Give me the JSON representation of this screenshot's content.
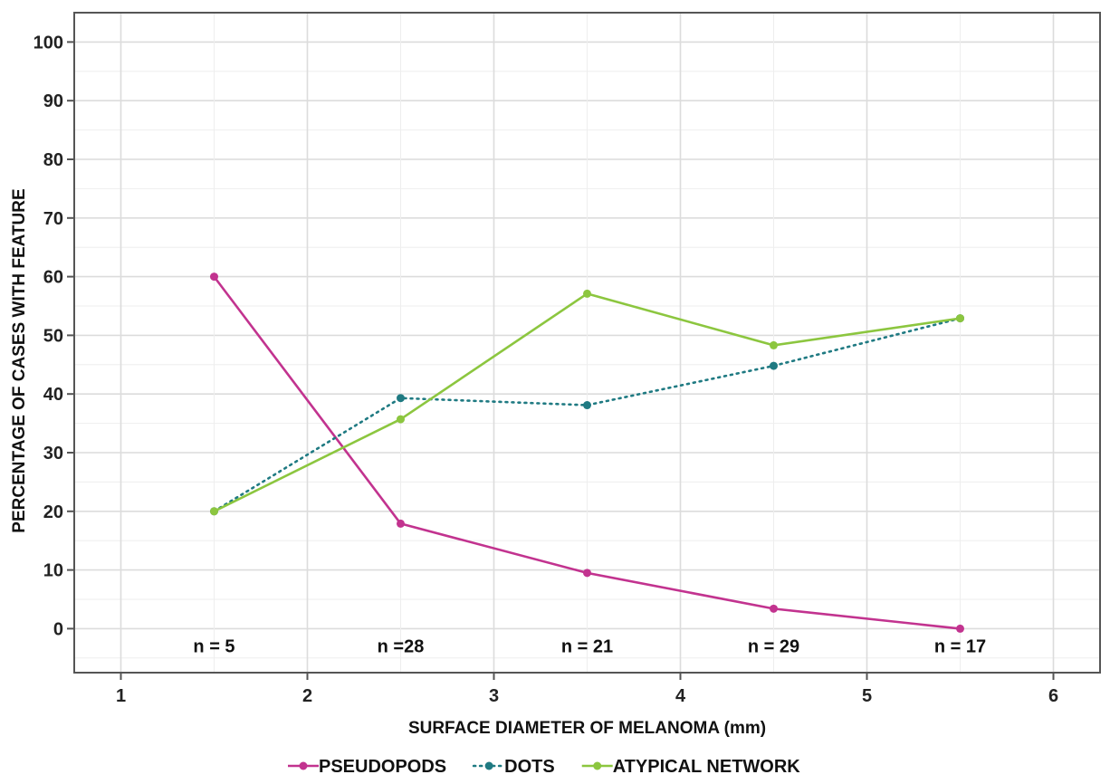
{
  "chart_data": {
    "type": "line",
    "xlabel": "SURFACE DIAMETER OF MELANOMA (mm)",
    "ylabel": "PERCENTAGE OF CASES WITH FEATURE",
    "xlim": [
      0.75,
      6.25
    ],
    "ylim": [
      -7.5,
      105
    ],
    "xticks": [
      1,
      2,
      3,
      4,
      5,
      6
    ],
    "yticks": [
      0,
      10,
      20,
      30,
      40,
      50,
      60,
      70,
      80,
      90,
      100
    ],
    "x": [
      1.5,
      2.5,
      3.5,
      4.5,
      5.5
    ],
    "grid": true,
    "legend_position": "bottom",
    "series": [
      {
        "name": "PSEUDOPODS",
        "values": [
          60,
          17.9,
          9.5,
          3.4,
          0
        ],
        "color": "#c2338f",
        "style": "solid"
      },
      {
        "name": "DOTS",
        "values": [
          20,
          39.3,
          38.1,
          44.8,
          52.9
        ],
        "color": "#1f7a82",
        "style": "dotted"
      },
      {
        "name": "ATYPICAL NETWORK",
        "values": [
          20,
          35.7,
          57.1,
          48.3,
          52.9
        ],
        "color": "#8cc63f",
        "style": "solid"
      }
    ],
    "annotations": [
      {
        "x": 1.5,
        "text": "n = 5"
      },
      {
        "x": 2.5,
        "text": "n =28"
      },
      {
        "x": 3.5,
        "text": "n = 21"
      },
      {
        "x": 4.5,
        "text": "n = 29"
      },
      {
        "x": 5.5,
        "text": "n = 17"
      }
    ]
  }
}
